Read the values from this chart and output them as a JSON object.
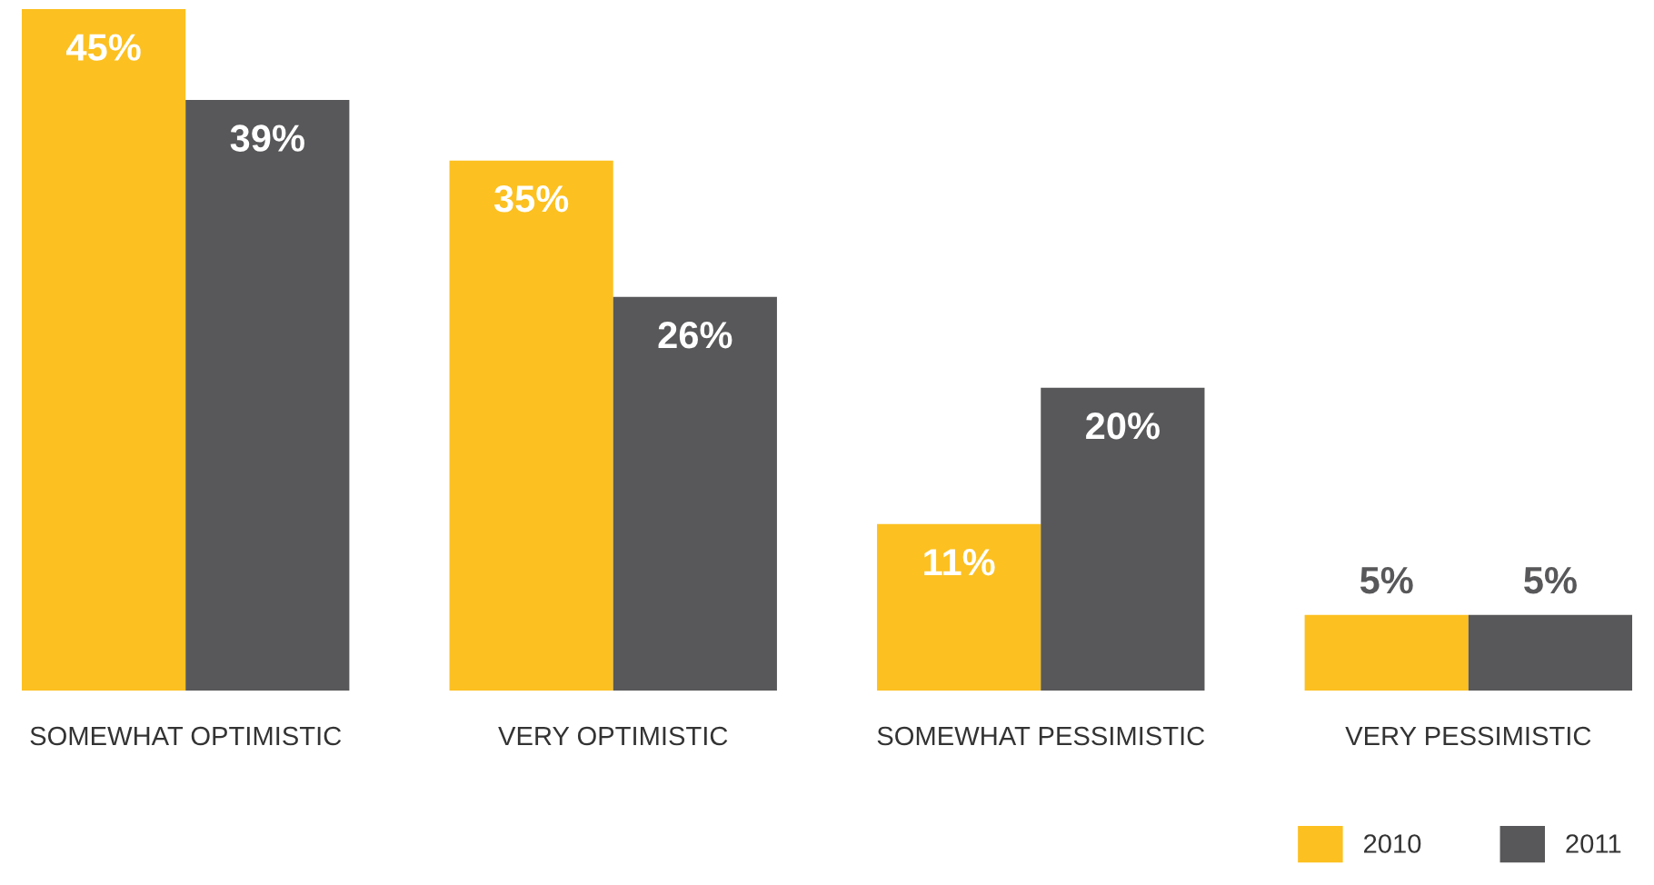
{
  "chart_data": {
    "type": "bar",
    "categories": [
      "SOMEWHAT OPTIMISTIC",
      "VERY OPTIMISTIC",
      "SOMEWHAT PESSIMISTIC",
      "VERY PESSIMISTIC"
    ],
    "series": [
      {
        "name": "2010",
        "color": "#fcc020",
        "values": [
          45,
          35,
          11,
          5
        ],
        "value_labels": [
          "45%",
          "35%",
          "11%",
          "5%"
        ]
      },
      {
        "name": "2011",
        "color": "#58585a",
        "values": [
          39,
          26,
          20,
          5
        ],
        "value_labels": [
          "39%",
          "26%",
          "20%",
          "5%"
        ]
      }
    ],
    "legend": "bottom right",
    "grid": false
  }
}
